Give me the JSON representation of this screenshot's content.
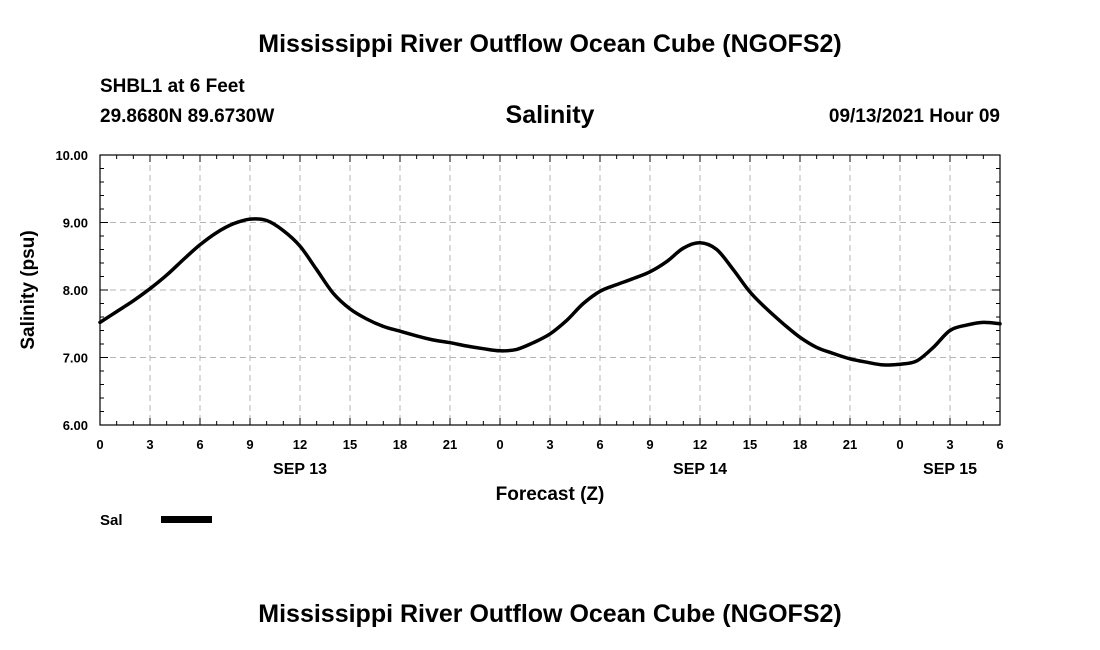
{
  "header": {
    "title": "Mississippi River Outflow Ocean Cube (NGOFS2)",
    "station": "SHBL1 at 6 Feet",
    "coords": "29.8680N  89.6730W",
    "variable": "Salinity",
    "datetime": "09/13/2021 Hour 09"
  },
  "footer": {
    "title": "Mississippi River Outflow Ocean Cube (NGOFS2)"
  },
  "chart_data": {
    "type": "line",
    "title": "Salinity",
    "xlabel": "Forecast (Z)",
    "ylabel": "Salinity (psu)",
    "xlim": [
      0,
      54
    ],
    "ylim": [
      6.0,
      10.0
    ],
    "grid": true,
    "x_ticks": [
      0,
      3,
      6,
      9,
      12,
      15,
      18,
      21,
      24,
      27,
      30,
      33,
      36,
      39,
      42,
      45,
      48,
      51,
      54
    ],
    "x_tick_labels": [
      "0",
      "3",
      "6",
      "9",
      "12",
      "15",
      "18",
      "21",
      "0",
      "3",
      "6",
      "9",
      "12",
      "15",
      "18",
      "21",
      "0",
      "3",
      "6"
    ],
    "y_ticks": [
      6.0,
      7.0,
      8.0,
      9.0,
      10.0
    ],
    "y_tick_labels": [
      "6.00",
      "7.00",
      "8.00",
      "9.00",
      "10.00"
    ],
    "date_labels": [
      {
        "x": 12,
        "label": "SEP 13"
      },
      {
        "x": 36,
        "label": "SEP 14"
      },
      {
        "x": 51,
        "label": "SEP 15"
      }
    ],
    "legend_position": "bottom-left",
    "series": [
      {
        "name": "Sal",
        "color": "#000000",
        "x": [
          0,
          1,
          2,
          3,
          4,
          5,
          6,
          7,
          8,
          9,
          10,
          11,
          12,
          13,
          14,
          15,
          16,
          17,
          18,
          19,
          20,
          21,
          22,
          23,
          24,
          25,
          26,
          27,
          28,
          29,
          30,
          31,
          32,
          33,
          34,
          35,
          36,
          37,
          38,
          39,
          40,
          41,
          42,
          43,
          44,
          45,
          46,
          47,
          48,
          49,
          50,
          51,
          52,
          53,
          54
        ],
        "values": [
          7.52,
          7.68,
          7.84,
          8.02,
          8.22,
          8.45,
          8.67,
          8.85,
          8.98,
          9.05,
          9.03,
          8.88,
          8.65,
          8.3,
          7.95,
          7.72,
          7.57,
          7.46,
          7.39,
          7.32,
          7.26,
          7.22,
          7.17,
          7.13,
          7.1,
          7.12,
          7.22,
          7.35,
          7.55,
          7.8,
          7.98,
          8.08,
          8.17,
          8.27,
          8.42,
          8.62,
          8.7,
          8.6,
          8.3,
          7.97,
          7.72,
          7.5,
          7.3,
          7.15,
          7.06,
          6.98,
          6.93,
          6.89,
          6.9,
          6.95,
          7.15,
          7.4,
          7.48,
          7.52,
          7.5
        ]
      }
    ]
  }
}
